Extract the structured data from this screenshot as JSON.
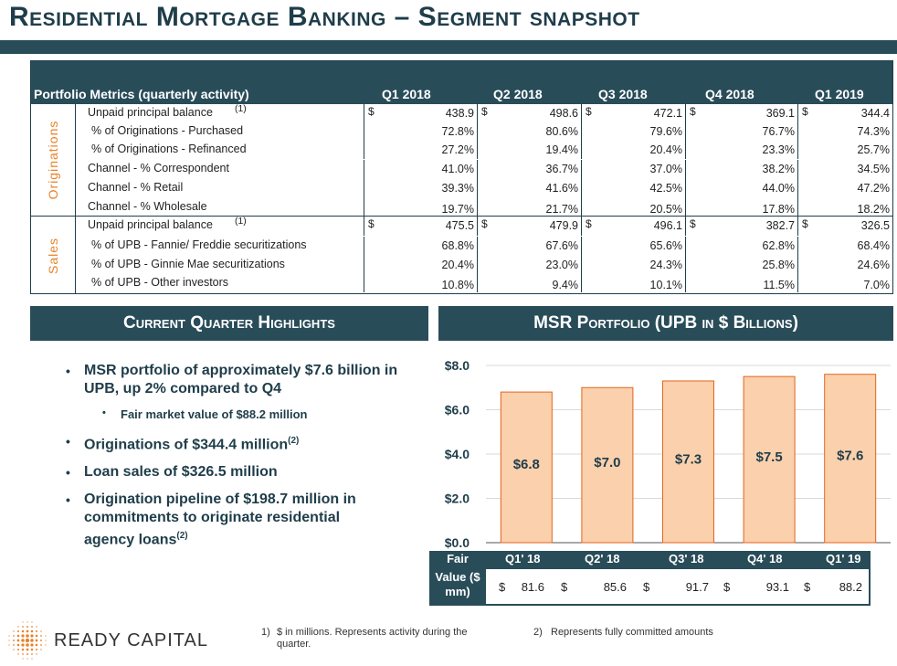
{
  "title": "Residential Mortgage Banking – Segment snapshot",
  "metrics": {
    "header_label": "Portfolio Metrics (quarterly activity)",
    "columns": [
      "Q1 2018",
      "Q2 2018",
      "Q3 2018",
      "Q4 2018",
      "Q1 2019"
    ],
    "sections": [
      {
        "name": "Originations",
        "rows": [
          {
            "label": "Unpaid principal balance",
            "ref": "(1)",
            "dollar": true,
            "values": [
              "438.9",
              "498.6",
              "472.1",
              "369.1",
              "344.4"
            ]
          },
          {
            "label": "% of Originations - Purchased",
            "values": [
              "72.8%",
              "80.6%",
              "79.6%",
              "76.7%",
              "74.3%"
            ]
          },
          {
            "label": "% of Originations - Refinanced",
            "values": [
              "27.2%",
              "19.4%",
              "20.4%",
              "23.3%",
              "25.7%"
            ]
          },
          {
            "label": "Channel - % Correspondent",
            "values": [
              "41.0%",
              "36.7%",
              "37.0%",
              "38.2%",
              "34.5%"
            ]
          },
          {
            "label": "Channel - % Retail",
            "values": [
              "39.3%",
              "41.6%",
              "42.5%",
              "44.0%",
              "47.2%"
            ]
          },
          {
            "label": "Channel - % Wholesale",
            "values": [
              "19.7%",
              "21.7%",
              "20.5%",
              "17.8%",
              "18.2%"
            ]
          }
        ]
      },
      {
        "name": "Sales",
        "rows": [
          {
            "label": "Unpaid principal balance",
            "ref": "(1)",
            "dollar": true,
            "values": [
              "475.5",
              "479.9",
              "496.1",
              "382.7",
              "326.5"
            ]
          },
          {
            "label": "% of UPB - Fannie/ Freddie securitizations",
            "values": [
              "68.8%",
              "67.6%",
              "65.6%",
              "62.8%",
              "68.4%"
            ]
          },
          {
            "label": "% of UPB - Ginnie Mae securitizations",
            "values": [
              "20.4%",
              "23.0%",
              "24.3%",
              "25.8%",
              "24.6%"
            ]
          },
          {
            "label": "% of UPB - Other investors",
            "values": [
              "10.8%",
              "9.4%",
              "10.1%",
              "11.5%",
              "7.0%"
            ]
          }
        ]
      }
    ],
    "dollar_sign": "$"
  },
  "highlights": {
    "header": "Current Quarter Highlights",
    "items": [
      {
        "text": "MSR portfolio of approximately $7.6 billion in UPB, up 2% compared to Q4",
        "sub": "Fair market value of $88.2 million"
      },
      {
        "text": "Originations of $344.4 million",
        "ref": "(2)"
      },
      {
        "text": "Loan sales of $326.5 million"
      },
      {
        "text": "Origination pipeline of $198.7 million in commitments to originate residential agency loans",
        "ref": "(2)"
      }
    ]
  },
  "msr": {
    "header": "MSR Portfolio (UPB in $ Billions)",
    "bar_color": "#fbd0ac",
    "bar_border": "#e0651c"
  },
  "chart_data": {
    "type": "bar",
    "title": "MSR Portfolio (UPB in $ Billions)",
    "categories": [
      "Q1' 18",
      "Q2' 18",
      "Q3' 18",
      "Q4' 18",
      "Q1' 19"
    ],
    "values": [
      6.8,
      7.0,
      7.3,
      7.5,
      7.6
    ],
    "data_labels": [
      "$6.8",
      "$7.0",
      "$7.3",
      "$7.5",
      "$7.6"
    ],
    "y_ticks": [
      "$0.0",
      "$2.0",
      "$4.0",
      "$6.0",
      "$8.0"
    ],
    "ylim": [
      0,
      8
    ],
    "grid": true
  },
  "fair_value": {
    "label_top": "Fair",
    "label_bottom": "Value ($ mm)",
    "quarters": [
      "Q1' 18",
      "Q2' 18",
      "Q3' 18",
      "Q4' 18",
      "Q1' 19"
    ],
    "dollar": "$",
    "values": [
      "81.6",
      "85.6",
      "91.7",
      "93.1",
      "88.2"
    ]
  },
  "footer": {
    "logo_text": "READY CAPITAL",
    "note1_num": "1)",
    "note1": "$ in millions. Represents activity during the quarter.",
    "note2_num": "2)",
    "note2": "Represents fully committed amounts"
  },
  "colors": {
    "navy": "#294c59",
    "orange": "#e8832a"
  }
}
